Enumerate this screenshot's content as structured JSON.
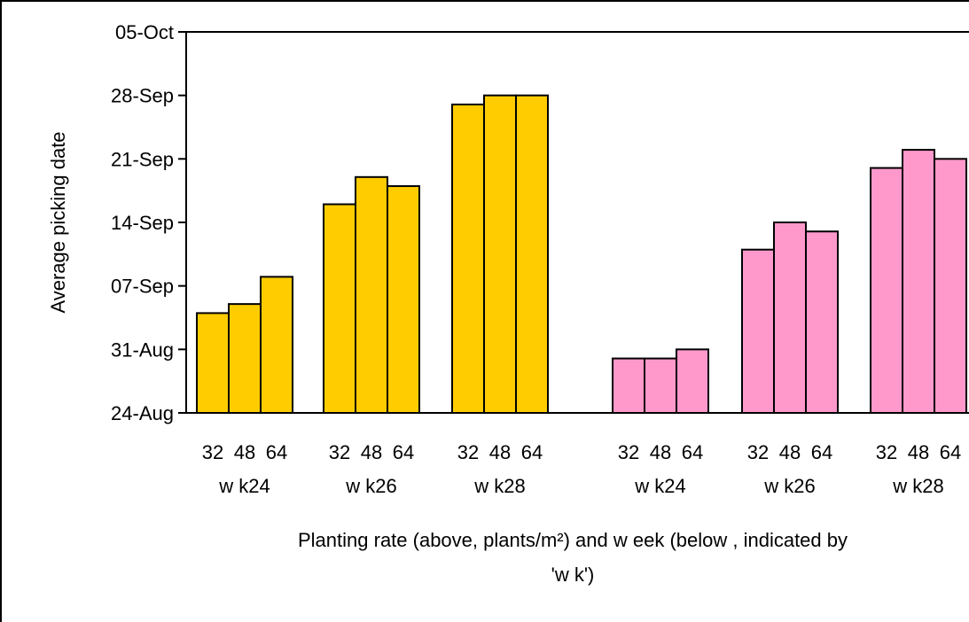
{
  "chart_data": {
    "type": "bar",
    "title": "",
    "ylabel": "Average picking date",
    "xlabel_lines": [
      "Planting rate (above, plants/m²) and w eek (below , indicated by",
      "'w k')"
    ],
    "y_ticks": [
      "24-Aug",
      "31-Aug",
      "07-Sep",
      "14-Sep",
      "21-Sep",
      "28-Sep",
      "05-Oct"
    ],
    "ylim": [
      "24-Aug",
      "05-Oct"
    ],
    "groups": [
      {
        "series_color": "#FFCC00",
        "week_label": "w k24",
        "rate_labels": [
          "32",
          "48",
          "64"
        ],
        "values": [
          "04-Sep",
          "05-Sep",
          "08-Sep"
        ]
      },
      {
        "series_color": "#FFCC00",
        "week_label": "w k26",
        "rate_labels": [
          "32",
          "48",
          "64"
        ],
        "values": [
          "16-Sep",
          "19-Sep",
          "18-Sep"
        ]
      },
      {
        "series_color": "#FFCC00",
        "week_label": "w k28",
        "rate_labels": [
          "32",
          "48",
          "64"
        ],
        "values": [
          "27-Sep",
          "28-Sep",
          "28-Sep"
        ]
      },
      {
        "series_color": "#FF99CC",
        "week_label": "w k24",
        "rate_labels": [
          "32",
          "48",
          "64"
        ],
        "values": [
          "30-Aug",
          "30-Aug",
          "31-Aug"
        ]
      },
      {
        "series_color": "#FF99CC",
        "week_label": "w k26",
        "rate_labels": [
          "32",
          "48",
          "64"
        ],
        "values": [
          "11-Sep",
          "14-Sep",
          "13-Sep"
        ]
      },
      {
        "series_color": "#FF99CC",
        "week_label": "w k28",
        "rate_labels": [
          "32",
          "48",
          "64"
        ],
        "values": [
          "20-Sep",
          "22-Sep",
          "21-Sep"
        ]
      }
    ],
    "grid": false,
    "legend": "none"
  }
}
